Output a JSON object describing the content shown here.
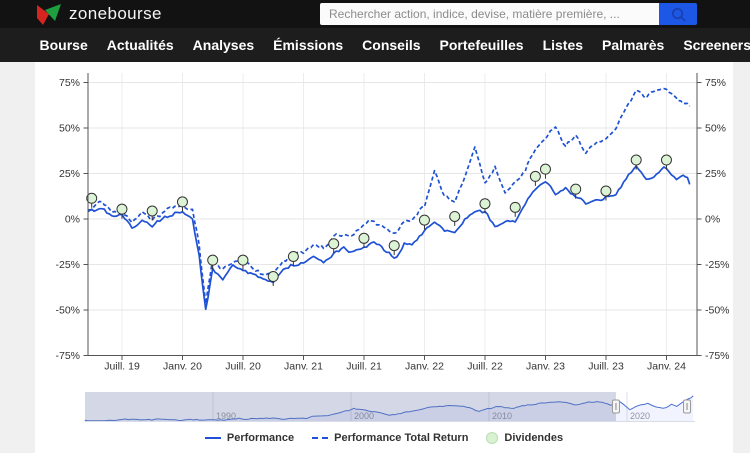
{
  "header": {
    "logo_text": "zonebourse",
    "search": {
      "placeholder": "Rechercher action, indice, devise, matière première, ..."
    }
  },
  "nav": {
    "items": [
      "Bourse",
      "Actualités",
      "Analyses",
      "Émissions",
      "Conseils",
      "Portefeuilles",
      "Listes",
      "Palmarès",
      "Screeners"
    ]
  },
  "legend": {
    "performance": "Performance",
    "total_return": "Performance Total Return",
    "dividendes": "Dividendes"
  },
  "chart_data": {
    "type": "line",
    "title": "",
    "colors": {
      "line": "#1f51d4",
      "dividend_fill": "#ddf3d6",
      "dividend_stroke": "#333333",
      "grid": "#e6e6e6",
      "axis": "#555555",
      "nav_mask": "rgba(99,114,166,0.28)",
      "nav_line": "#4a6fd0",
      "nav_area": "rgba(61,90,254,0.07)"
    },
    "yaxis": {
      "unit": "%",
      "ticks": [
        75,
        50,
        25,
        0,
        -25,
        -50,
        -75
      ],
      "range": [
        -75,
        80
      ]
    },
    "xaxis": {
      "ticks": [
        {
          "label": "Juill. 19",
          "t": 2019.542
        },
        {
          "label": "Janv. 20",
          "t": 2020.042
        },
        {
          "label": "Juill. 20",
          "t": 2020.542
        },
        {
          "label": "Janv. 21",
          "t": 2021.042
        },
        {
          "label": "Juill. 21",
          "t": 2021.542
        },
        {
          "label": "Janv. 22",
          "t": 2022.042
        },
        {
          "label": "Juill. 22",
          "t": 2022.542
        },
        {
          "label": "Janv. 23",
          "t": 2023.042
        },
        {
          "label": "Juill. 23",
          "t": 2023.542
        },
        {
          "label": "Janv. 24",
          "t": 2024.042
        }
      ]
    },
    "series": [
      {
        "name": "Performance",
        "style": "solid",
        "points": [
          [
            "2019-04",
            4
          ],
          [
            "2019-05",
            6
          ],
          [
            "2019-06",
            1
          ],
          [
            "2019-07",
            0
          ],
          [
            "2019-08",
            -6
          ],
          [
            "2019-09",
            -2
          ],
          [
            "2019-10",
            -5
          ],
          [
            "2019-11",
            -1
          ],
          [
            "2019-12",
            2
          ],
          [
            "2020-01",
            5
          ],
          [
            "2020-02",
            2
          ],
          [
            "2020-03a",
            -18
          ],
          [
            "2020-03b",
            -50
          ],
          [
            "2020-04",
            -26
          ],
          [
            "2020-05",
            -32
          ],
          [
            "2020-06",
            -26
          ],
          [
            "2020-07",
            -27
          ],
          [
            "2020-08",
            -30
          ],
          [
            "2020-09",
            -35
          ],
          [
            "2020-10",
            -36
          ],
          [
            "2020-11",
            -27
          ],
          [
            "2020-12",
            -25
          ],
          [
            "2021-01",
            -24
          ],
          [
            "2021-02",
            -21
          ],
          [
            "2021-03",
            -23
          ],
          [
            "2021-04",
            -18
          ],
          [
            "2021-05",
            -16
          ],
          [
            "2021-06",
            -18
          ],
          [
            "2021-07",
            -15
          ],
          [
            "2021-08",
            -12
          ],
          [
            "2021-09",
            -16
          ],
          [
            "2021-10",
            -20
          ],
          [
            "2021-11",
            -13
          ],
          [
            "2021-12",
            -12
          ],
          [
            "2022-01",
            -6
          ],
          [
            "2022-02",
            -3
          ],
          [
            "2022-03",
            -6
          ],
          [
            "2022-04",
            -8
          ],
          [
            "2022-05",
            0
          ],
          [
            "2022-06",
            5
          ],
          [
            "2022-07",
            3
          ],
          [
            "2022-08",
            -5
          ],
          [
            "2022-09",
            0
          ],
          [
            "2022-10",
            -1
          ],
          [
            "2022-11",
            8
          ],
          [
            "2022-12",
            16
          ],
          [
            "2023-01",
            22
          ],
          [
            "2023-02",
            15
          ],
          [
            "2023-03",
            17
          ],
          [
            "2023-04",
            12
          ],
          [
            "2023-05",
            8
          ],
          [
            "2023-06",
            11
          ],
          [
            "2023-07",
            13
          ],
          [
            "2023-08",
            16
          ],
          [
            "2023-09",
            23
          ],
          [
            "2023-10",
            27
          ],
          [
            "2023-11",
            21
          ],
          [
            "2023-12",
            24
          ],
          [
            "2024-01",
            27
          ],
          [
            "2024-02",
            21
          ],
          [
            "2024-03a",
            22
          ],
          [
            "2024-03b",
            19
          ]
        ]
      },
      {
        "name": "Performance Total Return",
        "style": "dashed",
        "points": [
          [
            "2019-04",
            5
          ],
          [
            "2019-05",
            8
          ],
          [
            "2019-06",
            3
          ],
          [
            "2019-07",
            2
          ],
          [
            "2019-08",
            -4
          ],
          [
            "2019-09",
            0
          ],
          [
            "2019-10",
            -3
          ],
          [
            "2019-11",
            1
          ],
          [
            "2019-12",
            4
          ],
          [
            "2020-01",
            7
          ],
          [
            "2020-02",
            4
          ],
          [
            "2020-03a",
            -15
          ],
          [
            "2020-03b",
            -46
          ],
          [
            "2020-04",
            -22
          ],
          [
            "2020-05",
            -28
          ],
          [
            "2020-06",
            -22
          ],
          [
            "2020-07",
            -23
          ],
          [
            "2020-08",
            -26
          ],
          [
            "2020-09",
            -31
          ],
          [
            "2020-10",
            -30
          ],
          [
            "2020-11",
            -22
          ],
          [
            "2020-12",
            -19
          ],
          [
            "2021-01",
            -17
          ],
          [
            "2021-02",
            -13
          ],
          [
            "2021-03",
            -15
          ],
          [
            "2021-04",
            -9
          ],
          [
            "2021-05",
            -7
          ],
          [
            "2021-06",
            -9
          ],
          [
            "2021-07",
            -5
          ],
          [
            "2021-08",
            -1
          ],
          [
            "2021-09",
            -6
          ],
          [
            "2021-10",
            -8
          ],
          [
            "2021-11",
            0
          ],
          [
            "2021-12",
            2
          ],
          [
            "2022-01",
            8
          ],
          [
            "2022-02",
            26
          ],
          [
            "2022-03",
            12
          ],
          [
            "2022-04",
            10
          ],
          [
            "2022-05",
            22
          ],
          [
            "2022-06",
            38
          ],
          [
            "2022-07",
            20
          ],
          [
            "2022-08",
            30
          ],
          [
            "2022-09",
            14
          ],
          [
            "2022-10",
            20
          ],
          [
            "2022-11",
            28
          ],
          [
            "2022-12",
            38
          ],
          [
            "2023-01",
            45
          ],
          [
            "2023-02",
            50
          ],
          [
            "2023-03",
            40
          ],
          [
            "2023-04",
            46
          ],
          [
            "2023-05",
            38
          ],
          [
            "2023-06",
            42
          ],
          [
            "2023-07",
            44
          ],
          [
            "2023-08",
            48
          ],
          [
            "2023-09",
            58
          ],
          [
            "2023-10",
            70
          ],
          [
            "2023-11",
            66
          ],
          [
            "2023-12",
            71
          ],
          [
            "2024-01",
            73
          ],
          [
            "2024-02",
            67
          ],
          [
            "2024-03a",
            65
          ],
          [
            "2024-03b",
            62
          ]
        ]
      }
    ],
    "dividends": {
      "name": "Dividendes",
      "points": [
        [
          "2019-04",
          7
        ],
        [
          "2019-07",
          1
        ],
        [
          "2019-10",
          0
        ],
        [
          "2020-01",
          5
        ],
        [
          "2020-04",
          -27
        ],
        [
          "2020-07",
          -27
        ],
        [
          "2020-10",
          -36
        ],
        [
          "2020-12",
          -25
        ],
        [
          "2021-04",
          -18
        ],
        [
          "2021-07",
          -15
        ],
        [
          "2021-10",
          -19
        ],
        [
          "2022-01",
          -5
        ],
        [
          "2022-04",
          -3
        ],
        [
          "2022-07",
          4
        ],
        [
          "2022-10",
          2
        ],
        [
          "2022-12",
          19
        ],
        [
          "2023-01",
          23
        ],
        [
          "2023-04",
          12
        ],
        [
          "2023-07",
          11
        ],
        [
          "2023-10",
          28
        ],
        [
          "2024-01",
          28
        ]
      ]
    },
    "navigator": {
      "range_years": [
        1980.7,
        2024.8
      ],
      "selection_years": [
        2019.2,
        2024.35
      ],
      "decades": [
        {
          "label": "1990",
          "t": 1990
        },
        {
          "label": "2000",
          "t": 2000
        },
        {
          "label": "2010",
          "t": 2010
        },
        {
          "label": "2020",
          "t": 2020
        }
      ],
      "points": [
        [
          1980.7,
          0.03
        ],
        [
          1983,
          0.03
        ],
        [
          1986,
          0.05
        ],
        [
          1989,
          0.05
        ],
        [
          1991,
          0.08
        ],
        [
          1993,
          0.1
        ],
        [
          1995,
          0.09
        ],
        [
          1997,
          0.16
        ],
        [
          1999,
          0.24
        ],
        [
          2000.2,
          0.42
        ],
        [
          2001,
          0.38
        ],
        [
          2002.8,
          0.26
        ],
        [
          2004,
          0.34
        ],
        [
          2005,
          0.42
        ],
        [
          2006,
          0.5
        ],
        [
          2007.5,
          0.58
        ],
        [
          2008.8,
          0.42
        ],
        [
          2009.3,
          0.36
        ],
        [
          2010.5,
          0.5
        ],
        [
          2011.8,
          0.42
        ],
        [
          2013,
          0.58
        ],
        [
          2014,
          0.66
        ],
        [
          2015.3,
          0.74
        ],
        [
          2016.2,
          0.6
        ],
        [
          2017,
          0.68
        ],
        [
          2018,
          0.74
        ],
        [
          2018.8,
          0.62
        ],
        [
          2019.5,
          0.72
        ],
        [
          2020.2,
          0.4
        ],
        [
          2020.8,
          0.55
        ],
        [
          2021.5,
          0.64
        ],
        [
          2022,
          0.56
        ],
        [
          2022.8,
          0.5
        ],
        [
          2023.2,
          0.62
        ],
        [
          2023.6,
          0.55
        ],
        [
          2023.9,
          0.68
        ],
        [
          2024.4,
          0.86
        ],
        [
          2024.8,
          0.93
        ]
      ]
    }
  }
}
